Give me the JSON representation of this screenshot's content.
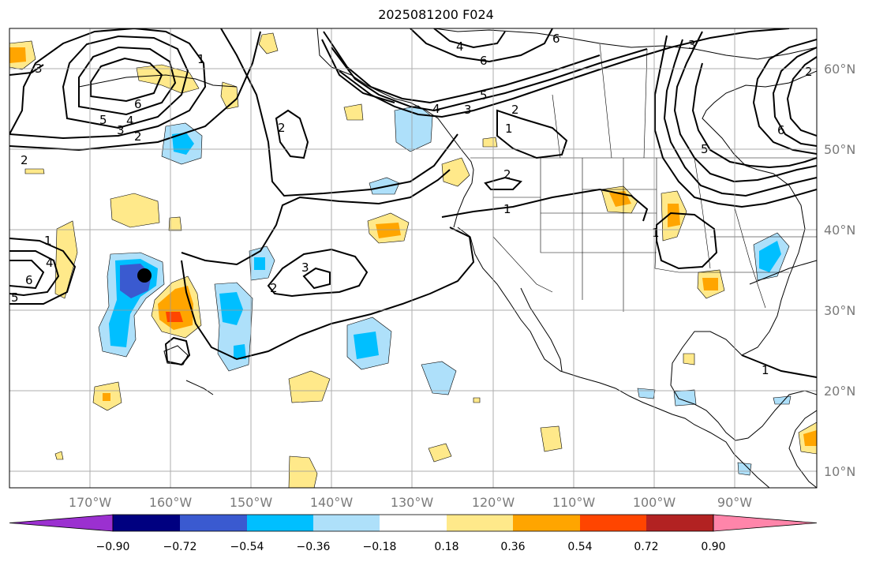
{
  "title": "2025081200 F024",
  "map": {
    "projection": "plate-carree",
    "lon_range": [
      -180,
      -80
    ],
    "lat_range": [
      8,
      65
    ],
    "gridlines": true,
    "lon_labels": [
      "170°W",
      "160°W",
      "150°W",
      "140°W",
      "130°W",
      "120°W",
      "110°W",
      "100°W",
      "90°W"
    ],
    "lat_labels": [
      "60°N",
      "50°N",
      "40°N",
      "30°N",
      "20°N",
      "10°N"
    ],
    "marker_color": "#000000",
    "contour_labels": [
      "3",
      "5",
      "3",
      "4",
      "2",
      "6",
      "2",
      "1",
      "4",
      "6",
      "6",
      "4",
      "5",
      "3",
      "2",
      "1",
      "3",
      "2",
      "6",
      "5",
      "2",
      "1",
      "2",
      "1",
      "1",
      "4",
      "6",
      "5",
      "2",
      "3",
      "1"
    ]
  },
  "colorbar": {
    "ticks": [
      "−0.90",
      "−0.72",
      "−0.54",
      "−0.36",
      "−0.18",
      "0.18",
      "0.36",
      "0.54",
      "0.72",
      "0.90"
    ],
    "colors": [
      "#9b30d0",
      "#000080",
      "#3a5ad0",
      "#00bfff",
      "#aee0fa",
      "#ffffff",
      "#ffe98a",
      "#ffa500",
      "#ff4500",
      "#b22222",
      "#ff85aa"
    ]
  }
}
